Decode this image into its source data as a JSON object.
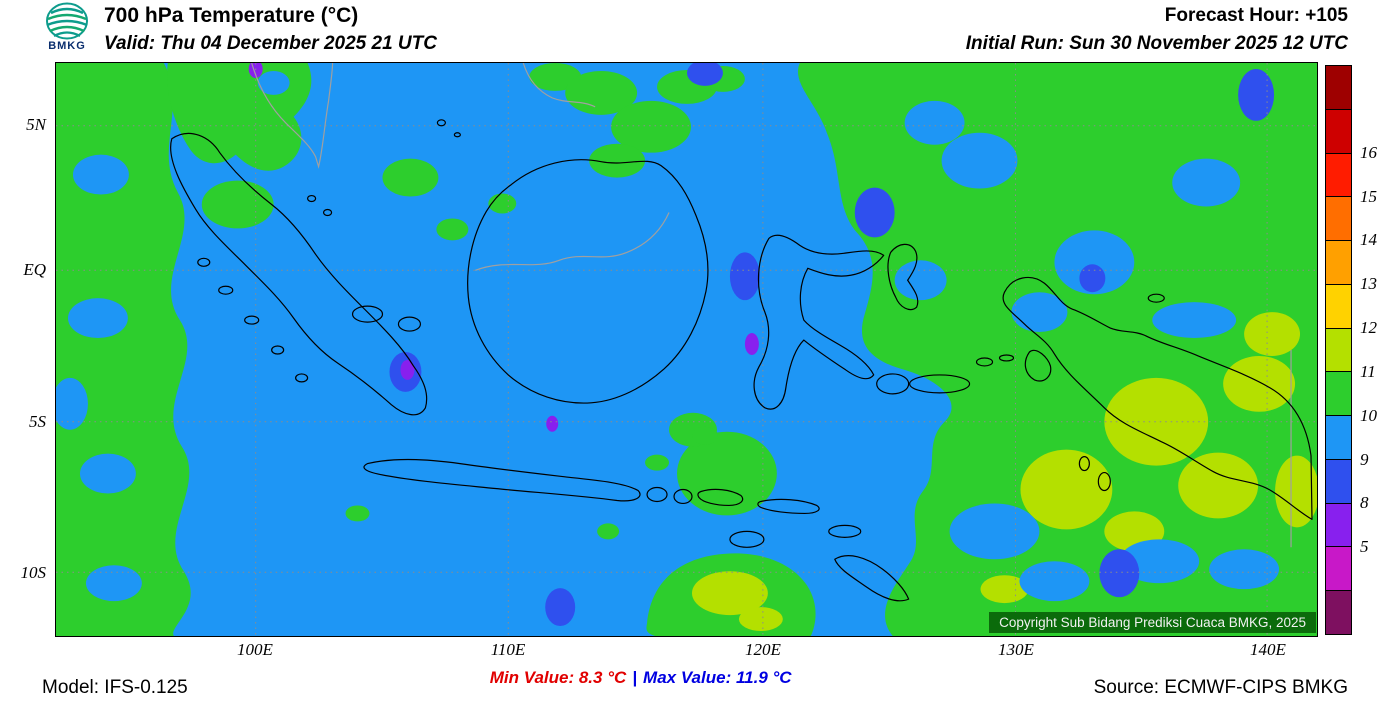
{
  "header": {
    "logo_text": "BMKG",
    "title": "700 hPa Temperature (°C)",
    "valid": "Valid: Thu 04 December 2025 21 UTC",
    "forecast_hour": "Forecast Hour: +105",
    "initial_run": "Initial Run: Sun 30 November 2025 12 UTC"
  },
  "map": {
    "lat_labels": [
      "5N",
      "EQ",
      "5S",
      "10S"
    ],
    "lon_labels": [
      "100E",
      "110E",
      "120E",
      "130E",
      "140E"
    ],
    "copyright": "Copyright Sub Bidang Prediksi Cuaca BMKG, 2025"
  },
  "legend": {
    "bands": [
      {
        "color": "#9E0000",
        "label": ""
      },
      {
        "color": "#CE0000",
        "label": "16"
      },
      {
        "color": "#FF1C00",
        "label": "15"
      },
      {
        "color": "#FF6E00",
        "label": "14"
      },
      {
        "color": "#FFA000",
        "label": "13"
      },
      {
        "color": "#FFD200",
        "label": "12"
      },
      {
        "color": "#B4E000",
        "label": "11"
      },
      {
        "color": "#2DCE2D",
        "label": "10"
      },
      {
        "color": "#1E96F5",
        "label": "9"
      },
      {
        "color": "#2F50EE",
        "label": "8"
      },
      {
        "color": "#8820EE",
        "label": "5"
      },
      {
        "color": "#C818C8",
        "label": ""
      },
      {
        "color": "#7E1060",
        "label": ""
      }
    ]
  },
  "palette": {
    "t5_8": "#8820EE",
    "t8_9": "#2F50EE",
    "t9_10": "#1E96F5",
    "t10_11": "#2DCE2D",
    "t11_12": "#B4E000",
    "coast": "#000000",
    "border_gray": "#A0A0A0",
    "grid": "#8C8C8C",
    "copyright_bg": "#0B6B0B",
    "min_color": "#E10000",
    "max_color": "#0000E1"
  },
  "footer": {
    "model": "Model: IFS-0.125",
    "min_value": "Min Value: 8.3 °C",
    "separator": "|",
    "max_value": "Max Value: 11.9 °C",
    "source": "Source: ECMWF-CIPS BMKG"
  }
}
